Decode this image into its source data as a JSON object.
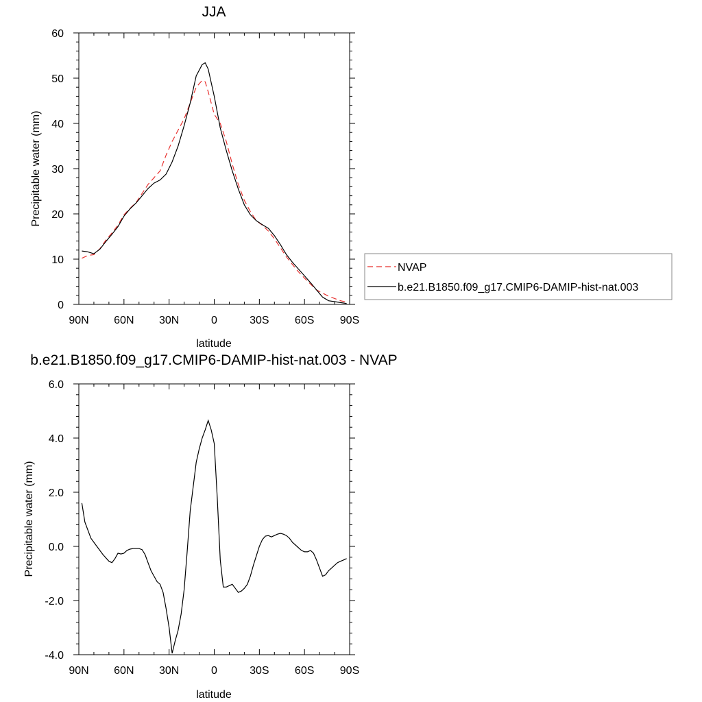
{
  "chart_data": [
    {
      "type": "line",
      "title": "JJA",
      "xlabel": "latitude",
      "ylabel": "Precipitable water (mm)",
      "xlim": [
        -90,
        90
      ],
      "ylim": [
        0,
        60
      ],
      "xticks": [
        -90,
        -60,
        -30,
        0,
        30,
        60,
        90
      ],
      "xtick_labels": [
        "90N",
        "60N",
        "30N",
        "0",
        "30S",
        "60S",
        "90S"
      ],
      "yticks": [
        0,
        10,
        20,
        30,
        40,
        50,
        60
      ],
      "ytick_labels": [
        "0",
        "10",
        "20",
        "30",
        "40",
        "50",
        "60"
      ],
      "legend_position": "right",
      "series": [
        {
          "name": "NVAP",
          "color": "#e8312f",
          "style": "dashed",
          "x": [
            -88,
            -84,
            -80,
            -76,
            -72,
            -68,
            -64,
            -60,
            -56,
            -52,
            -48,
            -44,
            -40,
            -36,
            -32,
            -28,
            -24,
            -20,
            -16,
            -12,
            -8,
            -6,
            -4,
            0,
            4,
            8,
            12,
            16,
            20,
            24,
            28,
            32,
            36,
            40,
            44,
            48,
            52,
            56,
            60,
            64,
            68,
            72,
            76,
            80,
            84,
            88
          ],
          "y": [
            10.2,
            10.8,
            11.0,
            12.3,
            14.2,
            15.8,
            17.5,
            19.8,
            21.2,
            22.5,
            24.5,
            26.5,
            28.0,
            29.5,
            33.0,
            36.0,
            38.5,
            41.0,
            44.5,
            48.0,
            49.5,
            49.2,
            47.0,
            42.0,
            40.0,
            36.0,
            31.0,
            26.5,
            23.0,
            20.5,
            18.5,
            17.5,
            16.2,
            14.5,
            12.5,
            10.5,
            8.8,
            7.2,
            5.8,
            4.5,
            3.2,
            2.5,
            1.8,
            1.3,
            0.8,
            0.5
          ]
        },
        {
          "name": "b.e21.B1850.f09_g17.CMIP6-DAMIP-hist-nat.003",
          "color": "#000000",
          "style": "solid",
          "x": [
            -88,
            -84,
            -80,
            -76,
            -72,
            -68,
            -64,
            -60,
            -56,
            -52,
            -48,
            -44,
            -40,
            -36,
            -32,
            -28,
            -24,
            -20,
            -16,
            -12,
            -8,
            -6,
            -4,
            0,
            4,
            8,
            12,
            16,
            20,
            24,
            28,
            32,
            36,
            40,
            44,
            48,
            52,
            56,
            60,
            64,
            68,
            72,
            76,
            80,
            84,
            88
          ],
          "y": [
            11.8,
            11.6,
            11.2,
            12.2,
            13.9,
            15.5,
            17.2,
            19.5,
            21.1,
            22.4,
            24.0,
            25.6,
            26.8,
            27.5,
            28.8,
            31.5,
            35.0,
            39.5,
            44.5,
            50.5,
            53.0,
            53.4,
            52.0,
            46.0,
            39.0,
            34.0,
            29.5,
            25.5,
            22.0,
            19.8,
            18.5,
            17.6,
            16.8,
            15.2,
            13.2,
            11.0,
            9.3,
            7.8,
            6.3,
            4.8,
            3.2,
            1.6,
            0.8,
            0.6,
            0.4,
            0.2
          ]
        }
      ]
    },
    {
      "type": "line",
      "title": "b.e21.B1850.f09_g17.CMIP6-DAMIP-hist-nat.003 - NVAP",
      "xlabel": "latitude",
      "ylabel": "Precipitable water (mm)",
      "xlim": [
        -90,
        90
      ],
      "ylim": [
        -4,
        6
      ],
      "xticks": [
        -90,
        -60,
        -30,
        0,
        30,
        60,
        90
      ],
      "xtick_labels": [
        "90N",
        "60N",
        "30N",
        "0",
        "30S",
        "60S",
        "90S"
      ],
      "yticks": [
        -4,
        -2,
        0,
        2,
        4,
        6
      ],
      "ytick_labels": [
        "-4.0",
        "-2.0",
        "0.0",
        "2.0",
        "4.0",
        "6.0"
      ],
      "series": [
        {
          "color": "#000000",
          "style": "solid",
          "x": [
            -88,
            -86,
            -82,
            -78,
            -74,
            -70,
            -68,
            -66,
            -64,
            -62,
            -60,
            -58,
            -56,
            -54,
            -52,
            -50,
            -48,
            -46,
            -44,
            -42,
            -40,
            -38,
            -36,
            -34,
            -32,
            -30,
            -28,
            -26,
            -24,
            -22,
            -20,
            -18,
            -16,
            -14,
            -12,
            -10,
            -8,
            -6,
            -4,
            -2,
            0,
            2,
            4,
            6,
            8,
            10,
            12,
            14,
            16,
            18,
            20,
            22,
            24,
            26,
            28,
            30,
            32,
            34,
            36,
            38,
            40,
            42,
            44,
            46,
            48,
            50,
            52,
            54,
            56,
            58,
            60,
            62,
            64,
            66,
            68,
            70,
            72,
            74,
            76,
            78,
            80,
            82,
            84,
            86,
            88
          ],
          "y": [
            1.6,
            0.9,
            0.3,
            0.0,
            -0.3,
            -0.55,
            -0.6,
            -0.45,
            -0.25,
            -0.28,
            -0.25,
            -0.15,
            -0.1,
            -0.08,
            -0.08,
            -0.08,
            -0.12,
            -0.3,
            -0.6,
            -0.9,
            -1.1,
            -1.3,
            -1.4,
            -1.7,
            -2.3,
            -3.0,
            -3.95,
            -3.5,
            -3.1,
            -2.5,
            -1.6,
            -0.2,
            1.3,
            2.2,
            3.1,
            3.6,
            4.0,
            4.3,
            4.65,
            4.3,
            3.8,
            1.8,
            -0.5,
            -1.5,
            -1.5,
            -1.45,
            -1.4,
            -1.55,
            -1.7,
            -1.65,
            -1.55,
            -1.4,
            -1.1,
            -0.7,
            -0.35,
            0.0,
            0.25,
            0.38,
            0.4,
            0.35,
            0.4,
            0.45,
            0.48,
            0.45,
            0.4,
            0.3,
            0.15,
            0.05,
            -0.05,
            -0.15,
            -0.2,
            -0.2,
            -0.15,
            -0.25,
            -0.5,
            -0.8,
            -1.1,
            -1.05,
            -0.9,
            -0.8,
            -0.7,
            -0.6,
            -0.55,
            -0.5,
            -0.45
          ]
        }
      ]
    }
  ]
}
